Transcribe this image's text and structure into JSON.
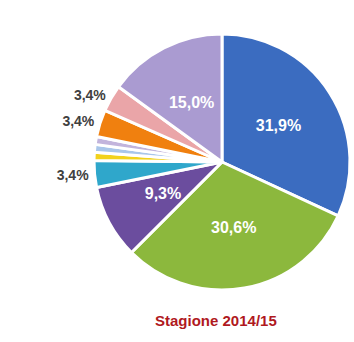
{
  "chart_data": {
    "type": "pie",
    "title": "Stagione 2014/15",
    "values": [
      31.9,
      30.6,
      9.3,
      3.4,
      1.0,
      1.0,
      1.0,
      3.4,
      3.4,
      15.0
    ],
    "value_labels": [
      "31,9%",
      "30,6%",
      "9,3%",
      "3,4%",
      null,
      null,
      null,
      "3,4%",
      "3,4%",
      "15,0%"
    ],
    "colors": [
      "#3b6cc0",
      "#8cb83d",
      "#6b4d9e",
      "#2fa7cb",
      "#f2d21c",
      "#a9c6ea",
      "#c2b4dc",
      "#f0800f",
      "#eaa5a8",
      "#aa9bd1"
    ],
    "data_labels": true
  }
}
